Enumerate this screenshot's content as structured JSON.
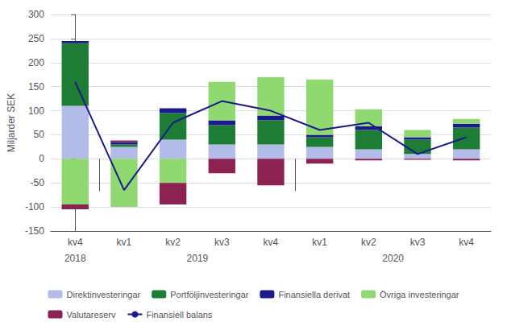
{
  "chart_data": {
    "type": "bar",
    "stacked": true,
    "categories": [
      "kv4",
      "kv1",
      "kv2",
      "kv3",
      "kv4",
      "kv1",
      "kv2",
      "kv3",
      "kv4"
    ],
    "x_groups": [
      {
        "label": "2018",
        "count": 1
      },
      {
        "label": "2019",
        "count": 4
      },
      {
        "label": "2020",
        "count": 4
      }
    ],
    "ylabel": "Miljarder SEK",
    "series": [
      {
        "name": "Direktinvesteringar",
        "color": "#b3bce8",
        "values": [
          110,
          25,
          40,
          30,
          30,
          25,
          20,
          10,
          20
        ]
      },
      {
        "name": "Portföljinvesteringar",
        "color": "#1e7d34",
        "values": [
          130,
          5,
          55,
          40,
          50,
          20,
          40,
          30,
          45
        ]
      },
      {
        "name": "Finansiella derivat",
        "color": "#1a1a8c",
        "values": [
          5,
          5,
          10,
          10,
          10,
          5,
          8,
          5,
          8
        ]
      },
      {
        "name": "Övriga investeringar",
        "color": "#90d870",
        "values": [
          -95,
          -100,
          -50,
          80,
          80,
          115,
          35,
          15,
          10
        ]
      },
      {
        "name": "Valutareserv",
        "color": "#8b2252",
        "values": [
          -10,
          3,
          -45,
          -30,
          -55,
          -10,
          -3,
          -2,
          -3
        ]
      },
      {
        "name": "Finansiell balans",
        "type": "line",
        "color": "#1a1a8c",
        "values": [
          160,
          -65,
          75,
          120,
          100,
          60,
          75,
          10,
          45
        ]
      }
    ],
    "ylim": [
      -150,
      300
    ],
    "yticks": [
      -150,
      -100,
      -50,
      0,
      50,
      100,
      150,
      200,
      250,
      300
    ],
    "grid": true,
    "legend": "bottom"
  }
}
